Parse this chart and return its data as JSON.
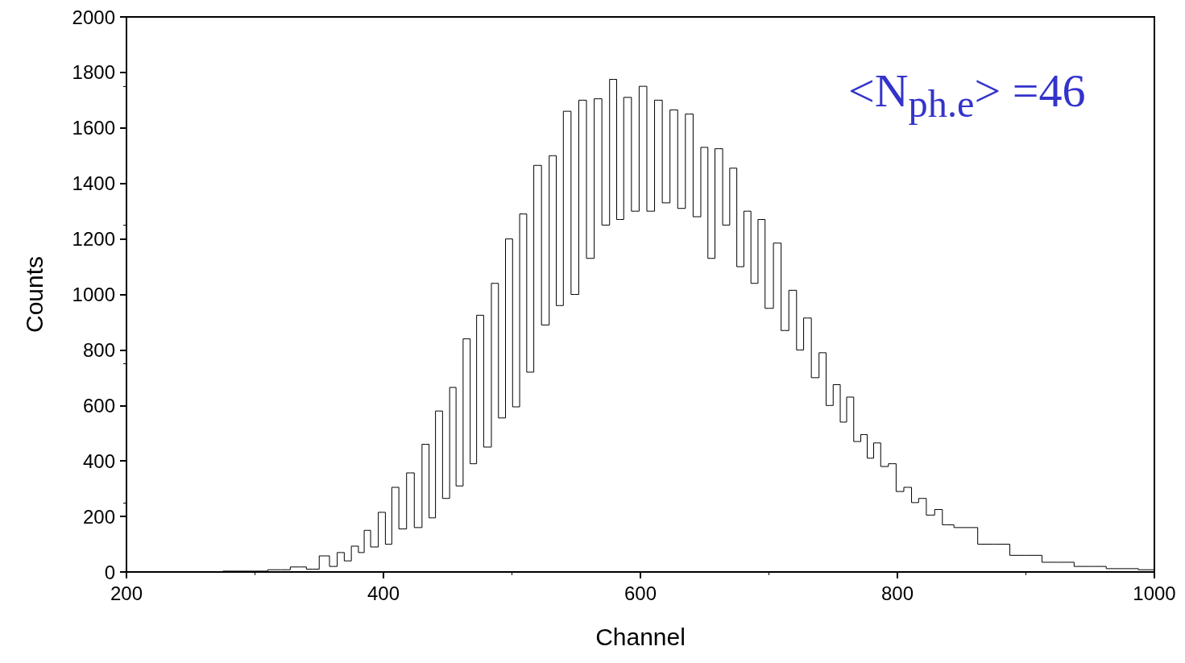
{
  "chart_data": {
    "type": "step",
    "xlabel": "Channel",
    "ylabel": "Counts",
    "annotations": [
      "<N$_{ph.e}$> =46"
    ],
    "x": [
      250,
      300,
      320,
      335,
      345,
      355,
      361,
      367,
      372,
      378,
      383,
      387,
      393,
      399,
      404,
      409,
      415,
      421,
      427,
      433,
      438,
      443,
      449,
      454,
      459,
      465,
      470,
      475,
      481,
      487,
      492,
      498,
      503,
      509,
      514,
      520,
      526,
      532,
      537,
      543,
      549,
      555,
      561,
      567,
      573,
      579,
      584,
      590,
      596,
      602,
      608,
      614,
      620,
      626,
      632,
      638,
      644,
      650,
      655,
      661,
      667,
      672,
      678,
      683,
      689,
      694,
      700,
      707,
      712,
      719,
      724,
      730,
      736,
      742,
      747,
      753,
      758,
      763,
      769,
      774,
      779,
      784,
      790,
      796,
      802,
      808,
      814,
      819,
      826,
      832,
      838,
      850,
      875,
      900,
      925,
      950,
      975,
      1000
    ],
    "series": [
      {
        "color": "#000000",
        "values": [
          0,
          3,
          8,
          18,
          10,
          58,
          20,
          70,
          40,
          93,
          70,
          150,
          90,
          215,
          100,
          305,
          155,
          357,
          160,
          460,
          195,
          580,
          265,
          665,
          310,
          840,
          390,
          925,
          450,
          1040,
          555,
          1200,
          595,
          1290,
          720,
          1465,
          890,
          1500,
          960,
          1660,
          1000,
          1700,
          1130,
          1705,
          1250,
          1775,
          1270,
          1710,
          1300,
          1750,
          1300,
          1700,
          1330,
          1665,
          1310,
          1650,
          1280,
          1530,
          1130,
          1525,
          1250,
          1455,
          1100,
          1300,
          1040,
          1270,
          950,
          1185,
          870,
          1015,
          800,
          915,
          700,
          790,
          600,
          675,
          540,
          630,
          470,
          495,
          410,
          465,
          380,
          390,
          290,
          305,
          250,
          265,
          205,
          225,
          170,
          160,
          100,
          60,
          35,
          20,
          12,
          8
        ]
      }
    ],
    "xlim": [
      200,
      1000
    ],
    "xticks": [
      200,
      400,
      600,
      800,
      1000
    ],
    "ylim": [
      0,
      2000
    ],
    "yticks": [
      0,
      200,
      400,
      600,
      800,
      1000,
      1200,
      1400,
      1600,
      1800,
      2000
    ],
    "grid": false
  }
}
